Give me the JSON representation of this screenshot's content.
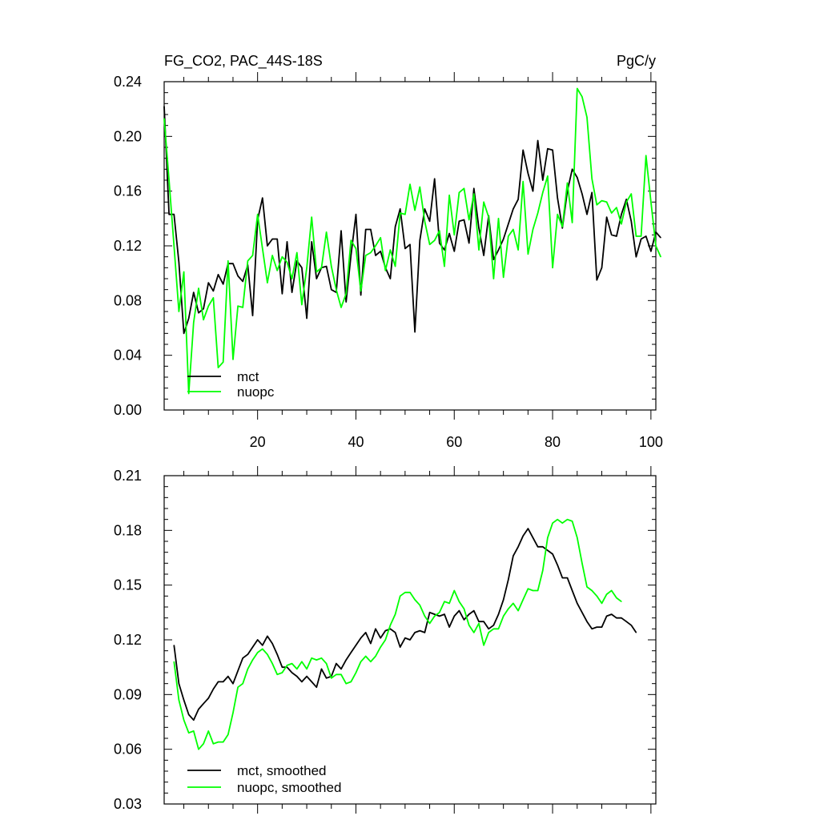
{
  "colors": {
    "mct": "#000000",
    "nuopc": "#00ff00"
  },
  "chart_data": [
    {
      "type": "line",
      "title_left": "FG_CO2, PAC_44S-18S",
      "title_right": "PgC/y",
      "xlim": [
        1,
        101
      ],
      "ylim": [
        0,
        0.24
      ],
      "yticks": [
        0,
        0.04,
        0.08,
        0.12,
        0.16,
        0.2,
        0.24
      ],
      "ytick_labels": [
        "0.00",
        "0.04",
        "0.08",
        "0.12",
        "0.16",
        "0.20",
        "0.24"
      ],
      "xticks": [
        20,
        40,
        60,
        80,
        100
      ],
      "xtick_labels": [
        "20",
        "40",
        "60",
        "80",
        "100"
      ],
      "x_start": 1,
      "series": [
        {
          "name": "mct",
          "color": "#000000",
          "values": [
            0.222,
            0.143,
            0.143,
            0.108,
            0.056,
            0.067,
            0.086,
            0.071,
            0.074,
            0.093,
            0.087,
            0.099,
            0.092,
            0.107,
            0.107,
            0.098,
            0.094,
            0.106,
            0.069,
            0.139,
            0.155,
            0.12,
            0.125,
            0.125,
            0.085,
            0.123,
            0.086,
            0.109,
            0.104,
            0.067,
            0.123,
            0.096,
            0.104,
            0.105,
            0.088,
            0.086,
            0.131,
            0.079,
            0.113,
            0.143,
            0.084,
            0.132,
            0.132,
            0.113,
            0.116,
            0.104,
            0.096,
            0.134,
            0.147,
            0.118,
            0.121,
            0.057,
            0.124,
            0.147,
            0.138,
            0.169,
            0.122,
            0.117,
            0.129,
            0.116,
            0.138,
            0.139,
            0.122,
            0.162,
            0.133,
            0.113,
            0.142,
            0.11,
            0.117,
            0.125,
            0.136,
            0.147,
            0.154,
            0.19,
            0.173,
            0.16,
            0.197,
            0.168,
            0.191,
            0.19,
            0.155,
            0.133,
            0.16,
            0.176,
            0.17,
            0.158,
            0.143,
            0.159,
            0.095,
            0.104,
            0.141,
            0.128,
            0.127,
            0.143,
            0.154,
            0.138,
            0.112,
            0.125,
            0.127,
            0.116,
            0.13,
            0.126
          ]
        },
        {
          "name": "nuopc",
          "color": "#00ff00",
          "values": [
            0.213,
            0.168,
            0.12,
            0.072,
            0.101,
            0.012,
            0.064,
            0.089,
            0.066,
            0.076,
            0.082,
            0.031,
            0.035,
            0.109,
            0.037,
            0.076,
            0.075,
            0.109,
            0.113,
            0.143,
            0.118,
            0.093,
            0.113,
            0.102,
            0.112,
            0.108,
            0.096,
            0.115,
            0.077,
            0.104,
            0.141,
            0.101,
            0.104,
            0.13,
            0.105,
            0.088,
            0.075,
            0.085,
            0.124,
            0.118,
            0.087,
            0.113,
            0.115,
            0.12,
            0.126,
            0.102,
            0.117,
            0.105,
            0.144,
            0.143,
            0.165,
            0.146,
            0.163,
            0.138,
            0.121,
            0.124,
            0.131,
            0.105,
            0.157,
            0.128,
            0.159,
            0.162,
            0.139,
            0.158,
            0.117,
            0.152,
            0.141,
            0.096,
            0.14,
            0.097,
            0.127,
            0.132,
            0.117,
            0.167,
            0.114,
            0.132,
            0.144,
            0.159,
            0.171,
            0.104,
            0.143,
            0.134,
            0.166,
            0.137,
            0.235,
            0.229,
            0.214,
            0.169,
            0.15,
            0.153,
            0.152,
            0.144,
            0.148,
            0.136,
            0.152,
            0.158,
            0.127,
            0.127,
            0.186,
            0.152,
            0.12,
            0.112
          ]
        }
      ],
      "legend": {
        "position": "bottom-left",
        "entries": [
          {
            "label": "mct",
            "color": "#000000"
          },
          {
            "label": "nuopc",
            "color": "#00ff00"
          }
        ]
      }
    },
    {
      "type": "line",
      "xlim": [
        1,
        101
      ],
      "ylim": [
        0.03,
        0.21
      ],
      "yticks": [
        0.03,
        0.06,
        0.09,
        0.12,
        0.15,
        0.18,
        0.21
      ],
      "ytick_labels": [
        "0.03",
        "0.06",
        "0.09",
        "0.12",
        "0.15",
        "0.18",
        "0.21"
      ],
      "xticks": [
        20,
        40,
        60,
        80,
        100
      ],
      "x_start": 3,
      "series": [
        {
          "name": "mct, smoothed",
          "color": "#000000",
          "values": [
            0.117,
            0.096,
            0.087,
            0.079,
            0.076,
            0.082,
            0.085,
            0.088,
            0.093,
            0.097,
            0.097,
            0.1,
            0.096,
            0.103,
            0.11,
            0.112,
            0.116,
            0.12,
            0.117,
            0.122,
            0.118,
            0.112,
            0.105,
            0.105,
            0.102,
            0.1,
            0.097,
            0.1,
            0.097,
            0.094,
            0.104,
            0.099,
            0.1,
            0.107,
            0.104,
            0.109,
            0.113,
            0.117,
            0.121,
            0.124,
            0.118,
            0.126,
            0.121,
            0.125,
            0.126,
            0.124,
            0.116,
            0.121,
            0.12,
            0.124,
            0.125,
            0.124,
            0.135,
            0.134,
            0.133,
            0.134,
            0.127,
            0.133,
            0.136,
            0.131,
            0.134,
            0.136,
            0.13,
            0.13,
            0.126,
            0.128,
            0.134,
            0.142,
            0.153,
            0.166,
            0.171,
            0.177,
            0.181,
            0.176,
            0.171,
            0.171,
            0.169,
            0.167,
            0.161,
            0.154,
            0.154,
            0.147,
            0.14,
            0.135,
            0.13,
            0.126,
            0.127,
            0.127,
            0.133,
            0.134,
            0.132,
            0.132,
            0.13,
            0.128,
            0.124
          ]
        },
        {
          "name": "nuopc, smoothed",
          "color": "#00ff00",
          "values": [
            0.108,
            0.087,
            0.076,
            0.069,
            0.07,
            0.06,
            0.063,
            0.07,
            0.063,
            0.064,
            0.064,
            0.068,
            0.08,
            0.094,
            0.096,
            0.104,
            0.109,
            0.113,
            0.115,
            0.112,
            0.107,
            0.101,
            0.102,
            0.106,
            0.107,
            0.104,
            0.108,
            0.104,
            0.11,
            0.109,
            0.11,
            0.107,
            0.099,
            0.101,
            0.101,
            0.096,
            0.097,
            0.102,
            0.108,
            0.111,
            0.108,
            0.111,
            0.116,
            0.12,
            0.128,
            0.134,
            0.144,
            0.146,
            0.146,
            0.142,
            0.139,
            0.133,
            0.129,
            0.133,
            0.135,
            0.141,
            0.14,
            0.147,
            0.141,
            0.137,
            0.128,
            0.124,
            0.129,
            0.117,
            0.124,
            0.126,
            0.126,
            0.133,
            0.137,
            0.14,
            0.136,
            0.142,
            0.148,
            0.147,
            0.147,
            0.158,
            0.176,
            0.184,
            0.186,
            0.184,
            0.186,
            0.185,
            0.176,
            0.162,
            0.149,
            0.147,
            0.144,
            0.14,
            0.145,
            0.147,
            0.143,
            0.141
          ]
        }
      ],
      "legend": {
        "position": "bottom-left",
        "entries": [
          {
            "label": "mct, smoothed",
            "color": "#000000"
          },
          {
            "label": "nuopc, smoothed",
            "color": "#00ff00"
          }
        ]
      }
    }
  ]
}
